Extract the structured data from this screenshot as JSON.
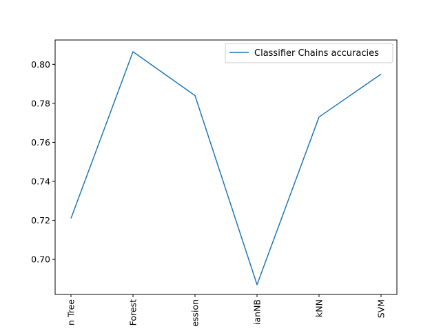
{
  "chart_data": {
    "type": "line",
    "title": "",
    "xlabel": "",
    "ylabel": "",
    "categories": [
      "n Tree",
      "Forest",
      "ession",
      "ianNB",
      "kNN",
      "SVM"
    ],
    "series": [
      {
        "name": "Classifier Chains accuracies",
        "values": [
          0.721,
          0.8065,
          0.784,
          0.687,
          0.773,
          0.795
        ],
        "color": "#1f77b4"
      }
    ],
    "ylim": [
      0.682,
      0.8125
    ],
    "yticks": [
      0.7,
      0.72,
      0.74,
      0.76,
      0.78,
      0.8
    ],
    "ytick_labels": [
      "0.70",
      "0.72",
      "0.74",
      "0.76",
      "0.78",
      "0.80"
    ],
    "grid": false,
    "legend_position": "upper right"
  }
}
